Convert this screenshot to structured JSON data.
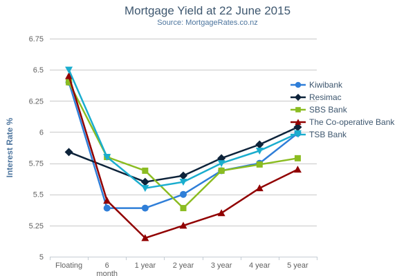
{
  "header": {
    "title": "Mortgage Yield at 22 June 2015",
    "subtitle": "Source: MortgageRates.co.nz"
  },
  "chart_data": {
    "type": "line",
    "title": "Mortgage Yield at 22 June 2015",
    "subtitle": "Source: MortgageRates.co.nz",
    "xlabel": "",
    "ylabel": "Interest Rate %",
    "categories": [
      "Floating",
      "6 month",
      "1 year",
      "2 year",
      "3 year",
      "4 year",
      "5 year"
    ],
    "ylim": [
      5,
      6.75
    ],
    "yticks": [
      5,
      5.25,
      5.5,
      5.75,
      6,
      6.25,
      6.5,
      6.75
    ],
    "grid": "horizontal-only",
    "legend_position": "right-inside",
    "series": [
      {
        "name": "Kiwibank",
        "color": "#2F7ED8",
        "marker": "circle",
        "values": [
          6.4,
          5.39,
          5.39,
          5.5,
          5.69,
          5.75,
          5.99
        ]
      },
      {
        "name": "Resimac",
        "color": "#0D233A",
        "marker": "diamond",
        "values": [
          5.84,
          null,
          5.6,
          5.65,
          5.79,
          5.9,
          6.04
        ]
      },
      {
        "name": "SBS Bank",
        "color": "#8BBC21",
        "marker": "square",
        "values": [
          6.4,
          5.8,
          5.69,
          5.39,
          5.69,
          5.74,
          5.79
        ]
      },
      {
        "name": "The Co-operative Bank",
        "color": "#910000",
        "marker": "triangle",
        "values": [
          6.45,
          5.45,
          5.15,
          5.25,
          5.35,
          5.55,
          5.7
        ]
      },
      {
        "name": "TSB Bank",
        "color": "#1AADCE",
        "marker": "triangle-down",
        "values": [
          6.5,
          5.8,
          5.55,
          5.6,
          5.75,
          5.85,
          5.99
        ]
      }
    ]
  },
  "colors": {
    "title_text": "#3E576F",
    "subtitle_text": "#4D759E",
    "axis_title_text": "#4D759E",
    "tick_label_text": "#606060",
    "gridline": "#C8C8C8",
    "axis_line": "#C4CCD4",
    "legend_text": "#3E576F",
    "background": "#FFFFFF"
  }
}
